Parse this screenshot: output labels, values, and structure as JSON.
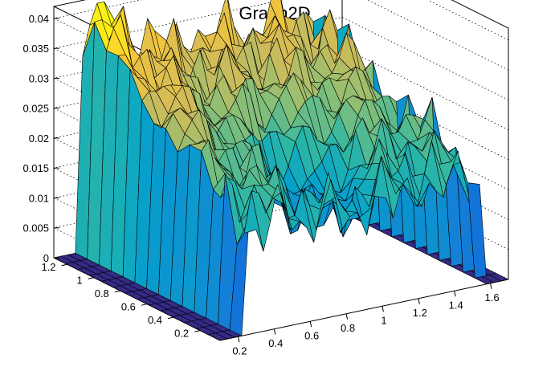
{
  "chart_data": {
    "type": "surface3d",
    "title": "Graph2D",
    "x_ticks": [
      "0.2",
      "0.4",
      "0.6",
      "0.8",
      "1",
      "1.2",
      "1.4",
      "1.6"
    ],
    "y_ticks": [
      "0.2",
      "0.4",
      "0.6",
      "0.8",
      "1",
      "1.2"
    ],
    "z_ticks": [
      "0",
      "0.005",
      "0.01",
      "0.015",
      "0.02",
      "0.025",
      "0.03",
      "0.035",
      "0.04"
    ],
    "x_range": [
      0.1,
      1.7
    ],
    "y_range": [
      0.05,
      1.3
    ],
    "z_range": [
      0,
      0.042
    ],
    "grid": true,
    "palette": [
      "#352a87",
      "#0f5cdd",
      "#1481d6",
      "#06a4ca",
      "#2eb7a4",
      "#87bf77",
      "#d1bb59",
      "#fec832",
      "#f9fb0e"
    ],
    "surface_description": "Interpolated rough surface: high ridges near 0.03-0.04 along the back rows, a central dip near x 0.6-0.9 around y 0.3-0.7, and zero regions at the far low-x edge and high-x edge"
  }
}
